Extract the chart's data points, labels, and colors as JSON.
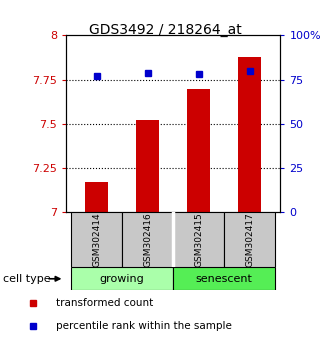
{
  "title": "GDS3492 / 218264_at",
  "samples": [
    "GSM302414",
    "GSM302416",
    "GSM302415",
    "GSM302417"
  ],
  "bar_values": [
    7.17,
    7.52,
    7.7,
    7.88
  ],
  "percentile_values": [
    77,
    79,
    78,
    80
  ],
  "ylim_left": [
    7.0,
    8.0
  ],
  "ylim_right": [
    0,
    100
  ],
  "yticks_left": [
    7.0,
    7.25,
    7.5,
    7.75,
    8.0
  ],
  "ytick_labels_left": [
    "7",
    "7.25",
    "7.5",
    "7.75",
    "8"
  ],
  "yticks_right": [
    0,
    25,
    50,
    75,
    100
  ],
  "ytick_labels_right": [
    "0",
    "25",
    "50",
    "75",
    "100%"
  ],
  "bar_color": "#cc0000",
  "percentile_color": "#0000cc",
  "groups": [
    {
      "label": "growing",
      "color": "#aaffaa"
    },
    {
      "label": "senescent",
      "color": "#55ee55"
    }
  ],
  "cell_type_label": "cell type",
  "legend_bar_label": "transformed count",
  "legend_pct_label": "percentile rank within the sample",
  "box_color": "#c8c8c8",
  "title_fontsize": 10,
  "axis_label_color_left": "#cc0000",
  "axis_label_color_right": "#0000cc",
  "tick_fontsize": 8,
  "sample_fontsize": 6.5,
  "group_fontsize": 8,
  "legend_fontsize": 7.5
}
